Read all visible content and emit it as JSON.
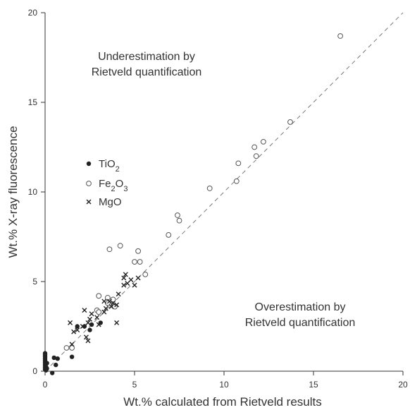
{
  "chart_data": {
    "type": "scatter",
    "title": "",
    "xlabel": "Wt.% calculated from Rietveld results",
    "ylabel": "Wt.% X-ray fluorescence",
    "xlim": [
      0,
      20
    ],
    "ylim": [
      0,
      20
    ],
    "xticks": [
      "0",
      "5",
      "10",
      "15",
      "20"
    ],
    "yticks": [
      "0",
      "5",
      "10",
      "15",
      "20"
    ],
    "grid": false,
    "legend_position": "left",
    "reference_line": {
      "style": "dashed",
      "from": [
        0,
        0
      ],
      "to": [
        20,
        20
      ]
    },
    "annotations": {
      "upper_line1": "Underestimation by",
      "upper_line2": "Rietveld quantification",
      "lower_line1": "Overestimation by",
      "lower_line2": "Rietveld quantification"
    },
    "legend": {
      "tio2": {
        "base": "TiO",
        "sub": "2",
        "sub2": ""
      },
      "fe2o3": {
        "base": "Fe",
        "sub": "2",
        "mid": "O",
        "sub2": "3"
      },
      "mgo": {
        "base": "MgO"
      }
    },
    "series": [
      {
        "name": "TiO2",
        "marker": "filled-circle",
        "points": [
          [
            0.0,
            0.1
          ],
          [
            0.0,
            0.2
          ],
          [
            0.0,
            0.3
          ],
          [
            0.0,
            0.4
          ],
          [
            0.0,
            0.5
          ],
          [
            0.0,
            0.6
          ],
          [
            0.0,
            0.7
          ],
          [
            0.0,
            0.8
          ],
          [
            0.0,
            0.9
          ],
          [
            0.0,
            1.0
          ],
          [
            0.05,
            0.05
          ],
          [
            0.05,
            0.25
          ],
          [
            0.1,
            0.15
          ],
          [
            0.1,
            0.45
          ],
          [
            0.5,
            0.75
          ],
          [
            0.6,
            0.35
          ],
          [
            0.7,
            0.7
          ],
          [
            0.4,
            -0.1
          ],
          [
            1.5,
            0.8
          ],
          [
            1.8,
            2.5
          ],
          [
            2.2,
            2.5
          ],
          [
            2.5,
            2.3
          ],
          [
            2.6,
            2.6
          ],
          [
            3.1,
            2.7
          ]
        ]
      },
      {
        "name": "Fe2O3",
        "marker": "open-circle",
        "points": [
          [
            16.5,
            18.7
          ],
          [
            13.7,
            13.9
          ],
          [
            12.2,
            12.8
          ],
          [
            11.7,
            12.5
          ],
          [
            11.8,
            12.0
          ],
          [
            10.8,
            11.6
          ],
          [
            10.7,
            10.6
          ],
          [
            9.2,
            10.2
          ],
          [
            7.4,
            8.7
          ],
          [
            7.5,
            8.4
          ],
          [
            6.9,
            7.6
          ],
          [
            4.2,
            7.0
          ],
          [
            3.6,
            6.8
          ],
          [
            5.2,
            6.7
          ],
          [
            5.0,
            6.1
          ],
          [
            5.3,
            6.1
          ],
          [
            5.6,
            5.4
          ],
          [
            3.0,
            4.2
          ],
          [
            3.5,
            4.1
          ],
          [
            3.8,
            4.0
          ],
          [
            3.6,
            3.7
          ],
          [
            3.9,
            3.6
          ],
          [
            2.9,
            3.4
          ],
          [
            3.0,
            3.3
          ],
          [
            1.2,
            1.3
          ],
          [
            1.5,
            1.3
          ],
          [
            3.5,
            3.8
          ]
        ]
      },
      {
        "name": "MgO",
        "marker": "cross",
        "points": [
          [
            4.5,
            5.4
          ],
          [
            4.4,
            5.2
          ],
          [
            4.8,
            5.1
          ],
          [
            4.6,
            4.9
          ],
          [
            5.2,
            5.2
          ],
          [
            4.4,
            4.8
          ],
          [
            5.0,
            4.8
          ],
          [
            3.3,
            3.9
          ],
          [
            3.6,
            3.9
          ],
          [
            3.8,
            3.8
          ],
          [
            4.1,
            4.3
          ],
          [
            4.0,
            3.7
          ],
          [
            3.7,
            3.6
          ],
          [
            3.4,
            3.5
          ],
          [
            2.2,
            3.4
          ],
          [
            2.6,
            3.2
          ],
          [
            2.9,
            3.0
          ],
          [
            2.5,
            2.9
          ],
          [
            2.4,
            2.7
          ],
          [
            1.4,
            2.7
          ],
          [
            2.1,
            2.5
          ],
          [
            1.8,
            2.3
          ],
          [
            1.6,
            2.2
          ],
          [
            3.0,
            2.6
          ],
          [
            2.3,
            1.9
          ],
          [
            2.4,
            1.7
          ],
          [
            4.0,
            2.7
          ],
          [
            1.5,
            1.5
          ],
          [
            3.3,
            3.3
          ]
        ]
      }
    ]
  }
}
